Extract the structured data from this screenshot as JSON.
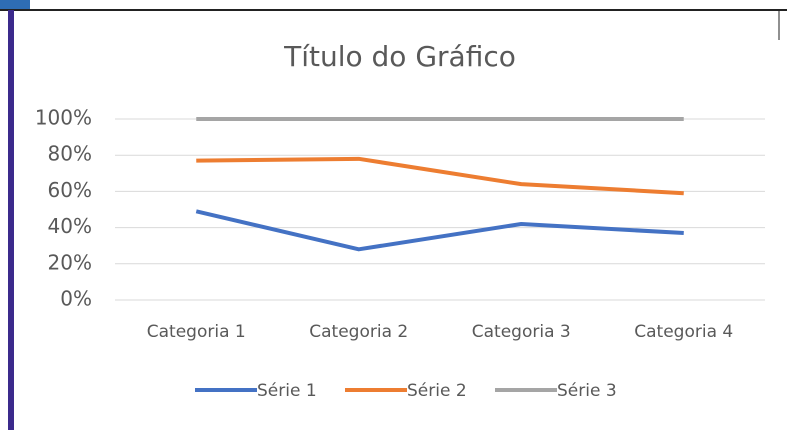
{
  "chart_data": {
    "type": "stacked_line_100",
    "title": "Título do Gráfico",
    "categories": [
      "Categoria 1",
      "Categoria 2",
      "Categoria 3",
      "Categoria 4"
    ],
    "series": [
      {
        "name": "Série 1",
        "color": "#4472c4",
        "values": [
          49,
          28,
          42,
          37
        ]
      },
      {
        "name": "Série 2",
        "color": "#ed7d31",
        "values": [
          28,
          50,
          22,
          22
        ]
      },
      {
        "name": "Série 3",
        "color": "#a5a5a5",
        "values": [
          23,
          22,
          36,
          41
        ]
      }
    ],
    "ylim": [
      0,
      100
    ],
    "yticks": [
      {
        "value": 0,
        "label": "0%"
      },
      {
        "value": 20,
        "label": "20%"
      },
      {
        "value": 40,
        "label": "40%"
      },
      {
        "value": 60,
        "label": "60%"
      },
      {
        "value": 80,
        "label": "80%"
      },
      {
        "value": 100,
        "label": "100%"
      }
    ],
    "grid": true,
    "legend": "bottom"
  }
}
